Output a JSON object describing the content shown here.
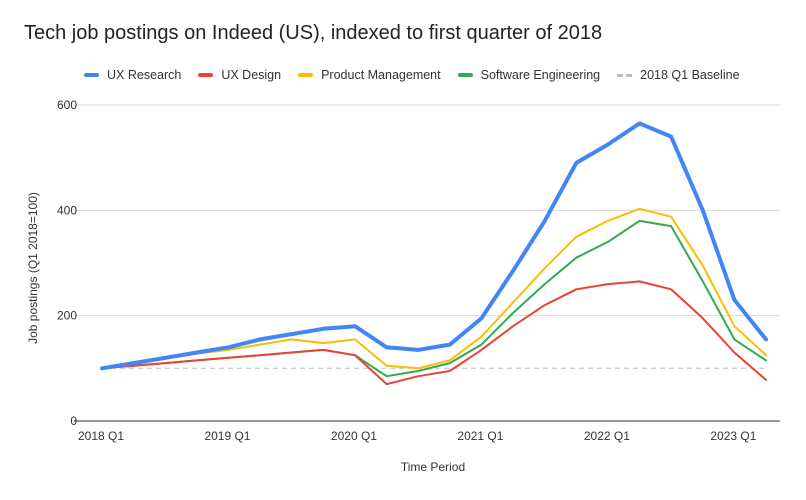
{
  "chart_data": {
    "type": "line",
    "title": "Tech job postings on Indeed (US), indexed to first quarter of 2018",
    "xlabel": "Time Period",
    "ylabel": "Job postings (Q1 2018=100)",
    "ylim": [
      0,
      600
    ],
    "yticks": [
      "0",
      "200",
      "400",
      "600"
    ],
    "grid": true,
    "legend_position": "top",
    "x": [
      "2018 Q1",
      "2018 Q2",
      "2018 Q3",
      "2018 Q4",
      "2019 Q1",
      "2019 Q2",
      "2019 Q3",
      "2019 Q4",
      "2020 Q1",
      "2020 Q2",
      "2020 Q3",
      "2020 Q4",
      "2021 Q1",
      "2021 Q2",
      "2021 Q3",
      "2021 Q4",
      "2022 Q1",
      "2022 Q2",
      "2022 Q3",
      "2022 Q4",
      "2023 Q1",
      "2023 Q2"
    ],
    "xtick_labels": [
      "2018 Q1",
      "2019 Q1",
      "2020 Q1",
      "2021 Q1",
      "2022 Q1",
      "2023 Q1"
    ],
    "series": [
      {
        "name": "UX Research",
        "color": "#4285f4",
        "width": 4,
        "dashed": false,
        "values": [
          100,
          110,
          120,
          130,
          140,
          155,
          165,
          175,
          180,
          140,
          135,
          145,
          195,
          285,
          380,
          490,
          525,
          565,
          540,
          400,
          230,
          155
        ]
      },
      {
        "name": "UX Design",
        "color": "#ea4335",
        "width": 2,
        "dashed": false,
        "values": [
          100,
          105,
          110,
          115,
          120,
          125,
          130,
          135,
          125,
          70,
          85,
          95,
          135,
          180,
          220,
          250,
          260,
          265,
          250,
          195,
          130,
          78
        ]
      },
      {
        "name": "Product Management",
        "color": "#fbbc04",
        "width": 2,
        "dashed": false,
        "values": [
          100,
          108,
          118,
          128,
          135,
          145,
          155,
          148,
          155,
          105,
          100,
          115,
          160,
          225,
          290,
          350,
          380,
          403,
          388,
          295,
          180,
          125
        ]
      },
      {
        "name": "Software Engineering",
        "color": "#34a853",
        "width": 2,
        "dashed": false,
        "values": [
          100,
          105,
          110,
          115,
          120,
          125,
          130,
          135,
          125,
          85,
          95,
          110,
          145,
          205,
          260,
          310,
          340,
          380,
          370,
          265,
          155,
          115
        ]
      },
      {
        "name": "2018 Q1 Baseline",
        "color": "#bdbdbd",
        "width": 2,
        "dashed": true,
        "values": [
          100,
          100,
          100,
          100,
          100,
          100,
          100,
          100,
          100,
          100,
          100,
          100,
          100,
          100,
          100,
          100,
          100,
          100,
          100,
          100,
          100,
          100
        ]
      }
    ]
  }
}
